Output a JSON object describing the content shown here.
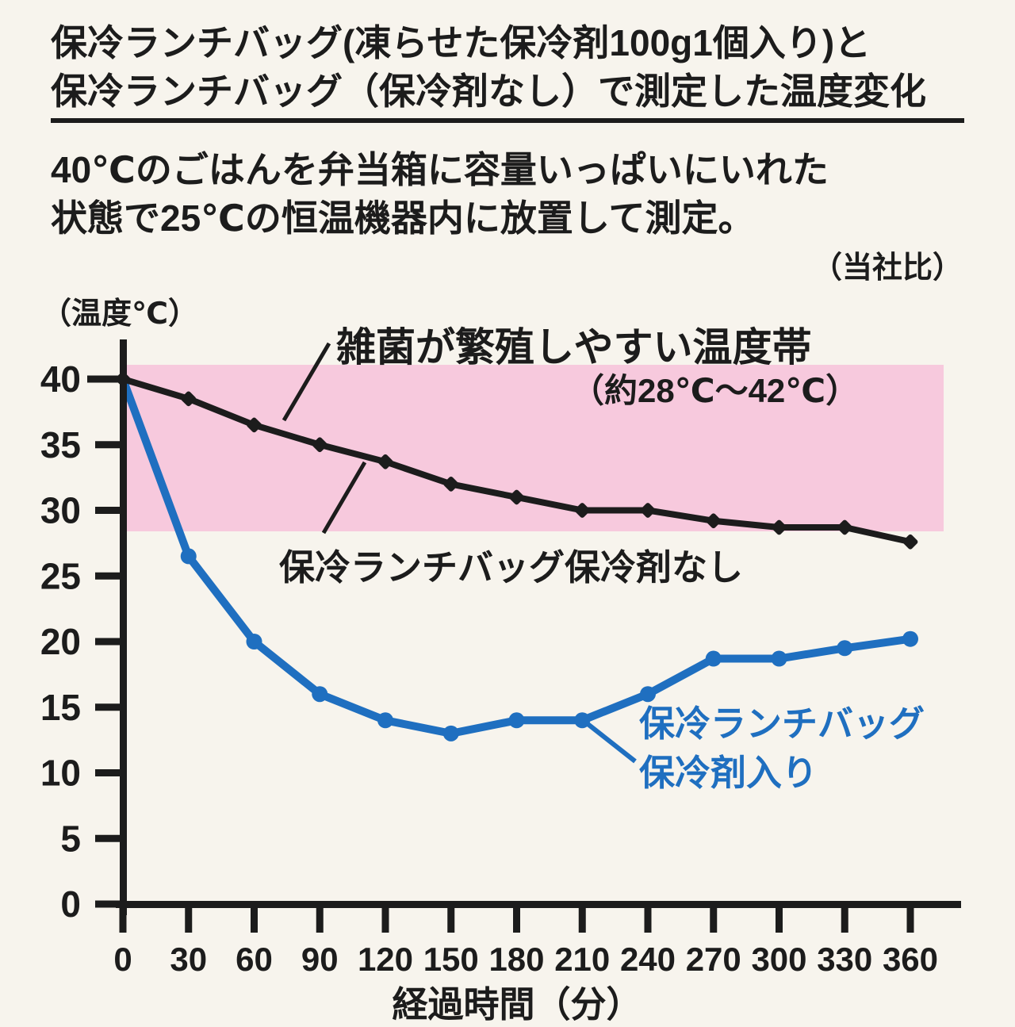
{
  "header": {
    "title_line1": "保冷ランチバッグ(凍らせた保冷剤100g1個入り)と",
    "title_line2": "保冷ランチバッグ（保冷剤なし）で測定した温度変化",
    "description_line1": "40℃のごはんを弁当箱に容量いっぱいにいれた",
    "description_line2": "状態で25℃の恒温機器内に放置して測定。",
    "note": "（当社比）"
  },
  "chart_data": {
    "type": "line",
    "title": "",
    "xlabel": "経過時間（分）",
    "ylabel": "（温度℃）",
    "x": [
      0,
      30,
      60,
      90,
      120,
      150,
      180,
      210,
      240,
      270,
      300,
      330,
      360
    ],
    "y_ticks": [
      0,
      5,
      10,
      15,
      20,
      25,
      30,
      35,
      40
    ],
    "xlim": [
      0,
      360
    ],
    "ylim": [
      0,
      41
    ],
    "grid": false,
    "background": "#f7f4ed",
    "axis_color": "#1c1c1c",
    "series": [
      {
        "name": "保冷ランチバッグ保冷剤なし",
        "color": "#1c1c1c",
        "marker": "diamond",
        "values": [
          40,
          38.5,
          36.5,
          35,
          33.7,
          32,
          31,
          30,
          30,
          29.2,
          28.7,
          28.7,
          27.6
        ]
      },
      {
        "name": "保冷ランチバッグ保冷剤入り",
        "color": "#1f6fc0",
        "marker": "circle",
        "values": [
          40,
          26.5,
          20,
          16,
          14,
          13,
          14,
          14,
          16,
          18.7,
          18.7,
          19.5,
          20.2
        ]
      }
    ],
    "band": {
      "y_from": 28,
      "y_to": 42,
      "color": "#f7c9dd",
      "label_line1": "雑菌が繁殖しやすい温度帯",
      "label_line2": "（約28℃〜42℃）"
    },
    "annotations": {
      "no_icepack_label": "保冷ランチバッグ保冷剤なし",
      "icepack_label_line1": "保冷ランチバッグ",
      "icepack_label_line2": "保冷剤入り"
    }
  }
}
